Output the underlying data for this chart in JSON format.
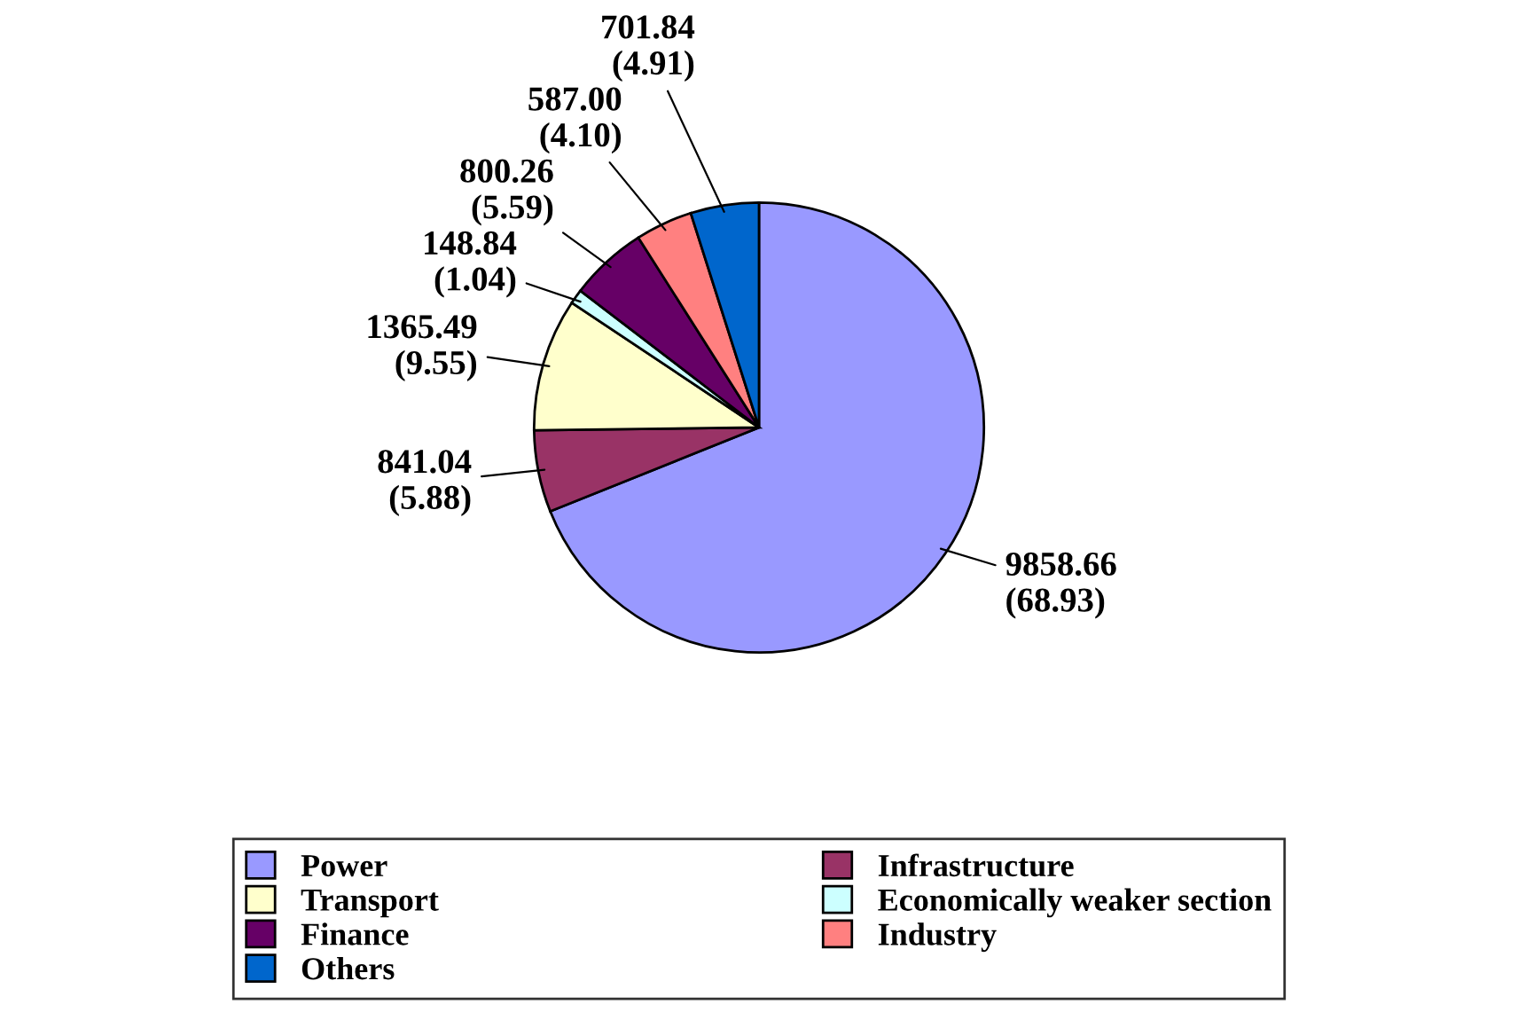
{
  "chart_data": {
    "type": "pie",
    "categories": [
      "Power",
      "Infrastructure",
      "Transport",
      "Economically weaker section",
      "Finance",
      "Industry",
      "Others"
    ],
    "values": [
      9858.66,
      841.04,
      1365.49,
      148.84,
      800.26,
      587.0,
      701.84
    ],
    "value_labels": [
      "9858.66\n(68.93)",
      "841.04\n(5.88)",
      "1365.49\n(9.55)",
      "148.84\n(1.04)",
      "800.26\n(5.59)",
      "587.00\n(4.10)",
      "701.84\n(4.91)"
    ],
    "colors": [
      "#9999ff",
      "#993366",
      "#ffffcc",
      "#ccffff",
      "#660066",
      "#ff8080",
      "#0066cc"
    ],
    "legend": "bottom"
  }
}
